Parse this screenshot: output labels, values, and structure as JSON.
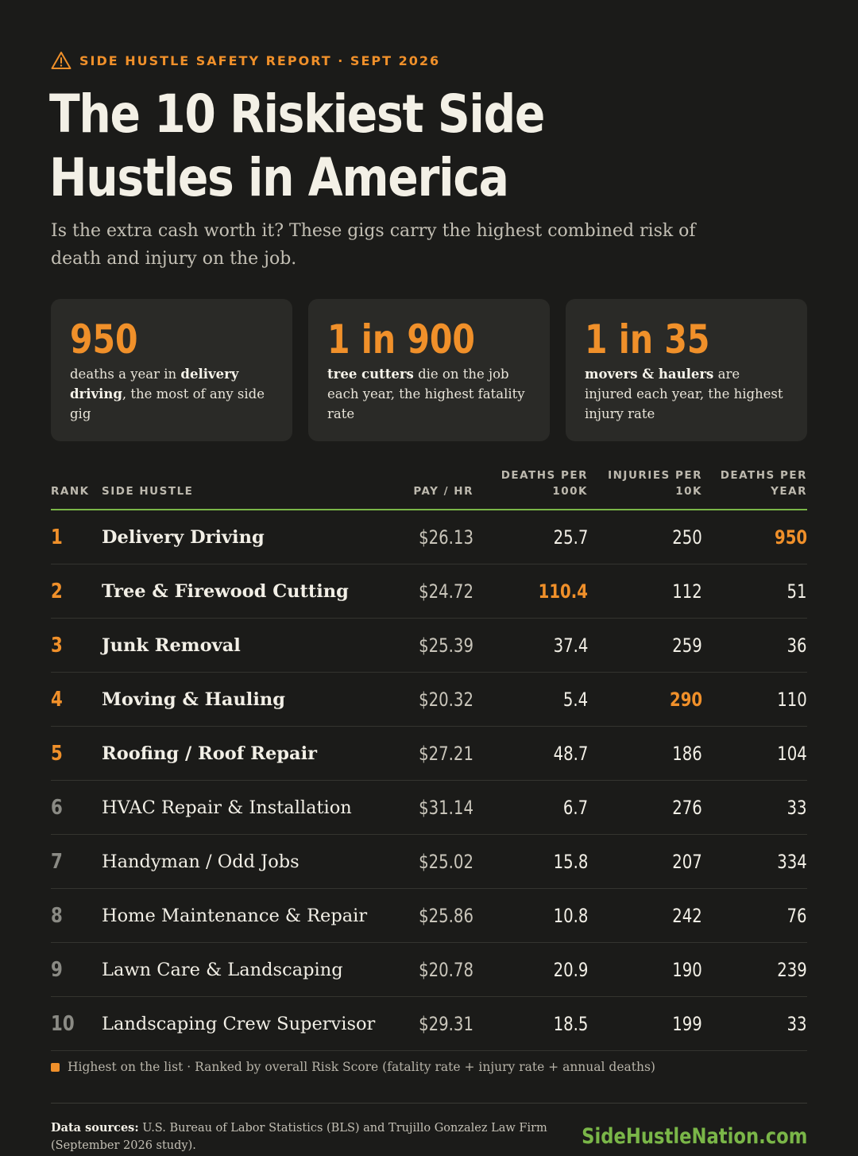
{
  "header": {
    "kicker": "SIDE HUSTLE SAFETY REPORT · SEPT 2026",
    "kicker_icon": "warning-triangle-icon",
    "title": "The 10 Riskiest Side Hustles in America",
    "subtitle": "Is the extra cash worth it? These gigs carry the highest combined risk of death and injury on the job."
  },
  "stats": [
    {
      "value": "950",
      "pre": "",
      "bold": "",
      "mid": "deaths a year in ",
      "bold2": "delivery driving",
      "post": ", the most of any side gig"
    },
    {
      "value": "1 in 900",
      "pre": "",
      "bold": "tree cutters",
      "mid": " die on the job each year, the highest fatality rate",
      "bold2": "",
      "post": ""
    },
    {
      "value": "1 in 35",
      "pre": "",
      "bold": "movers & haulers",
      "mid": " are injured each year, the highest injury rate",
      "bold2": "",
      "post": ""
    }
  ],
  "table": {
    "headers": {
      "rank": "RANK",
      "side_hustle": "SIDE HUSTLE",
      "pay": "PAY / HR",
      "deaths_per_100k_1": "DEATHS PER",
      "deaths_per_100k_2": "100K",
      "injuries_per_10k_1": "INJURIES PER",
      "injuries_per_10k_2": "10K",
      "deaths_per_year_1": "DEATHS PER",
      "deaths_per_year_2": "YEAR"
    },
    "rows": [
      {
        "rank": "1",
        "name": "Delivery Driving",
        "pay": "$26.13",
        "deaths_per_100k": "25.7",
        "injuries_per_10k": "250",
        "deaths_per_year": "950",
        "highlight": "deaths_per_year"
      },
      {
        "rank": "2",
        "name": "Tree & Firewood Cutting",
        "pay": "$24.72",
        "deaths_per_100k": "110.4",
        "injuries_per_10k": "112",
        "deaths_per_year": "51",
        "highlight": "deaths_per_100k"
      },
      {
        "rank": "3",
        "name": "Junk Removal",
        "pay": "$25.39",
        "deaths_per_100k": "37.4",
        "injuries_per_10k": "259",
        "deaths_per_year": "36",
        "highlight": ""
      },
      {
        "rank": "4",
        "name": "Moving & Hauling",
        "pay": "$20.32",
        "deaths_per_100k": "5.4",
        "injuries_per_10k": "290",
        "deaths_per_year": "110",
        "highlight": "injuries_per_10k"
      },
      {
        "rank": "5",
        "name": "Roofing / Roof Repair",
        "pay": "$27.21",
        "deaths_per_100k": "48.7",
        "injuries_per_10k": "186",
        "deaths_per_year": "104",
        "highlight": ""
      },
      {
        "rank": "6",
        "name": "HVAC Repair & Installation",
        "pay": "$31.14",
        "deaths_per_100k": "6.7",
        "injuries_per_10k": "276",
        "deaths_per_year": "33",
        "highlight": ""
      },
      {
        "rank": "7",
        "name": "Handyman / Odd Jobs",
        "pay": "$25.02",
        "deaths_per_100k": "15.8",
        "injuries_per_10k": "207",
        "deaths_per_year": "334",
        "highlight": ""
      },
      {
        "rank": "8",
        "name": "Home Maintenance & Repair",
        "pay": "$25.86",
        "deaths_per_100k": "10.8",
        "injuries_per_10k": "242",
        "deaths_per_year": "76",
        "highlight": ""
      },
      {
        "rank": "9",
        "name": "Lawn Care & Landscaping",
        "pay": "$20.78",
        "deaths_per_100k": "20.9",
        "injuries_per_10k": "190",
        "deaths_per_year": "239",
        "highlight": ""
      },
      {
        "rank": "10",
        "name": "Landscaping Crew Supervisor",
        "pay": "$29.31",
        "deaths_per_100k": "18.5",
        "injuries_per_10k": "199",
        "deaths_per_year": "33",
        "highlight": ""
      }
    ],
    "top_ranks_count": 5
  },
  "legend": "Highest on the list · Ranked by overall Risk Score (fatality rate + injury rate + annual deaths)",
  "footer": {
    "sources_label": "Data sources:",
    "sources_text": " U.S. Bureau of Labor Statistics (BLS) and Trujillo Gonzalez Law Firm (September 2026 study).",
    "brand": "SideHustleNation.com"
  },
  "colors": {
    "accent": "#f0902a",
    "brand": "#7ab648",
    "background": "#1b1b19",
    "card": "#2a2a27"
  }
}
